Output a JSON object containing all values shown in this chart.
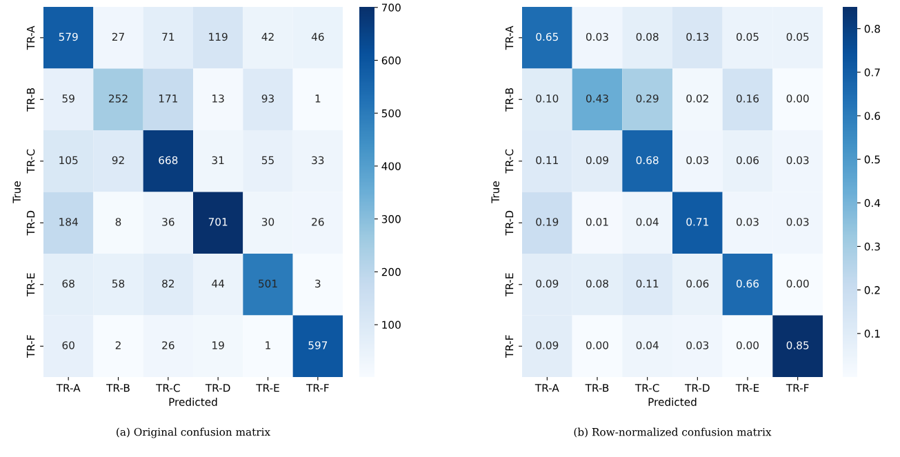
{
  "chart_data": [
    {
      "type": "heatmap",
      "xlabel": "Predicted",
      "ylabel": "True",
      "categories": [
        "TR-A",
        "TR-B",
        "TR-C",
        "TR-D",
        "TR-E",
        "TR-F"
      ],
      "y_categories": [
        "TR-A",
        "TR-B",
        "TR-C",
        "TR-D",
        "TR-E",
        "TR-F"
      ],
      "cells": [
        [
          579,
          27,
          71,
          119,
          42,
          46
        ],
        [
          59,
          252,
          171,
          13,
          93,
          1
        ],
        [
          105,
          92,
          668,
          31,
          55,
          33
        ],
        [
          184,
          8,
          36,
          701,
          30,
          26
        ],
        [
          68,
          58,
          82,
          44,
          501,
          3
        ],
        [
          60,
          2,
          26,
          19,
          1,
          597
        ]
      ],
      "clim": [
        1,
        701
      ],
      "cticks": [
        100,
        200,
        300,
        400,
        500,
        600,
        700
      ],
      "data_labels": true,
      "annotations": [
        "(a) Original confusion matrix"
      ]
    },
    {
      "type": "heatmap",
      "xlabel": "Predicted",
      "ylabel": "True",
      "categories": [
        "TR-A",
        "TR-B",
        "TR-C",
        "TR-D",
        "TR-E",
        "TR-F"
      ],
      "y_categories": [
        "TR-A",
        "TR-B",
        "TR-C",
        "TR-D",
        "TR-E",
        "TR-F"
      ],
      "cells": [
        [
          0.65,
          0.03,
          0.08,
          0.13,
          0.05,
          0.05
        ],
        [
          0.1,
          0.43,
          0.29,
          0.02,
          0.16,
          0.0
        ],
        [
          0.11,
          0.09,
          0.68,
          0.03,
          0.06,
          0.03
        ],
        [
          0.19,
          0.01,
          0.04,
          0.71,
          0.03,
          0.03
        ],
        [
          0.09,
          0.08,
          0.11,
          0.06,
          0.66,
          0.0
        ],
        [
          0.09,
          0.0,
          0.04,
          0.03,
          0.0,
          0.85
        ]
      ],
      "cell_labels": [
        [
          "0.65",
          "0.03",
          "0.08",
          "0.13",
          "0.05",
          "0.05"
        ],
        [
          "0.10",
          "0.43",
          "0.29",
          "0.02",
          "0.16",
          "0.00"
        ],
        [
          "0.11",
          "0.09",
          "0.68",
          "0.03",
          "0.06",
          "0.03"
        ],
        [
          "0.19",
          "0.01",
          "0.04",
          "0.71",
          "0.03",
          "0.03"
        ],
        [
          "0.09",
          "0.08",
          "0.11",
          "0.06",
          "0.66",
          "0.00"
        ],
        [
          "0.09",
          "0.00",
          "0.04",
          "0.03",
          "0.00",
          "0.85"
        ]
      ],
      "clim": [
        0,
        0.85
      ],
      "cticks": [
        0.1,
        0.2,
        0.3,
        0.4,
        0.5,
        0.6,
        0.7,
        0.8
      ],
      "data_labels": true,
      "annotations": [
        "(b) Row-normalized confusion matrix"
      ]
    }
  ]
}
